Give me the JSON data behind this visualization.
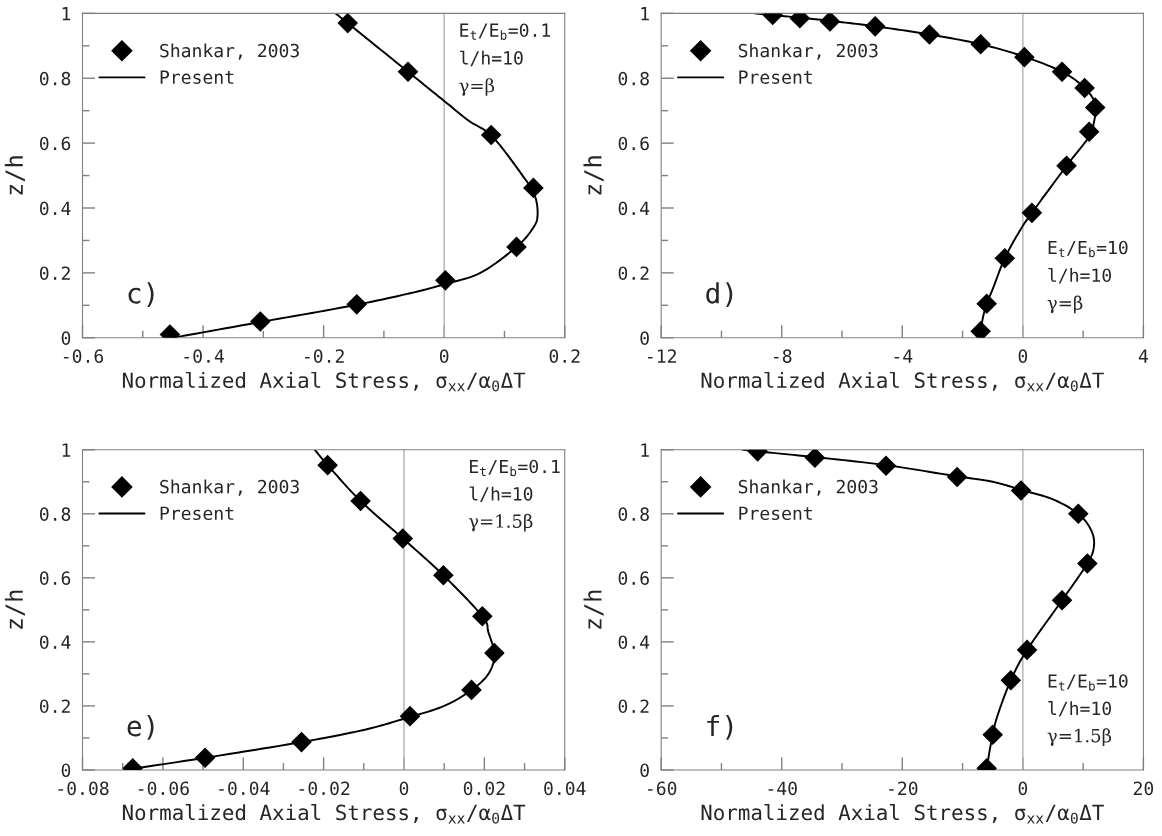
{
  "chart_data": [
    {
      "type": "line",
      "xlabel": "Normalized Axial Stress, σ$_{xx}$/α$_{0}$ΔT",
      "ylabel": "z/h",
      "legend": "top left",
      "grid": false,
      "xlim": [
        -0.6,
        0.2
      ],
      "xticks": [
        -0.6,
        {
          "value": -0.5,
          "label": null
        },
        -0.4,
        {
          "value": -0.3,
          "label": null
        },
        -0.2,
        {
          "value": -0.1,
          "label": null
        },
        0,
        {
          "value": 0.1,
          "label": null
        },
        0.2
      ],
      "ylim": [
        0,
        1
      ],
      "yticks": [
        0,
        {
          "value": 0.1,
          "label": null
        },
        0.2,
        {
          "value": 0.3,
          "label": null
        },
        0.4,
        {
          "value": 0.5,
          "label": null
        },
        0.6,
        {
          "value": 0.7,
          "label": null
        },
        0.8,
        {
          "value": 0.9,
          "label": null
        },
        1
      ],
      "ref_lines": [
        {
          "axis": "x",
          "value": 0,
          "color": "#b0b0b0"
        }
      ],
      "annotations": [
        "c)",
        "E$_{t}$/E$_{b}$=0.1",
        "l/h=10",
        "γ=β"
      ],
      "series": [
        {
          "name": "Shankar, 2003",
          "type": "scatter",
          "marker": "diamond",
          "color": "#000000",
          "x": [
            -0.455,
            -0.305,
            -0.145,
            0.002,
            0.12,
            0.148,
            0.078,
            -0.06,
            -0.16
          ],
          "values": [
            0.01,
            0.05,
            0.103,
            0.177,
            0.28,
            0.462,
            0.625,
            0.82,
            0.97
          ]
        },
        {
          "name": "Present",
          "color": "#000000",
          "x": [
            -0.45,
            -0.3,
            -0.15,
            -0.05,
            0,
            0.06,
            0.12,
            0.148,
            0.155,
            0.15,
            0.13,
            0.08,
            0.04,
            0,
            -0.06,
            -0.12,
            -0.16,
            -0.18
          ],
          "values": [
            0,
            0.05,
            0.1,
            0.14,
            0.165,
            0.2,
            0.28,
            0.34,
            0.38,
            0.44,
            0.5,
            0.62,
            0.67,
            0.73,
            0.82,
            0.91,
            0.97,
            1.0
          ]
        }
      ]
    },
    {
      "type": "line",
      "xlabel": "Normalized Axial Stress, σ$_{xx}$/α$_{0}$ΔT",
      "ylabel": "z/h",
      "legend": "top left",
      "grid": false,
      "xlim": [
        -12,
        4
      ],
      "xticks": [
        -12,
        {
          "value": -10,
          "label": null
        },
        -8,
        {
          "value": -6,
          "label": null
        },
        -4,
        {
          "value": -2,
          "label": null
        },
        0,
        {
          "value": 2,
          "label": null
        },
        4
      ],
      "ylim": [
        0,
        1
      ],
      "yticks": [
        0,
        {
          "value": 0.1,
          "label": null
        },
        0.2,
        {
          "value": 0.3,
          "label": null
        },
        0.4,
        {
          "value": 0.5,
          "label": null
        },
        0.6,
        {
          "value": 0.7,
          "label": null
        },
        0.8,
        {
          "value": 0.9,
          "label": null
        },
        1
      ],
      "ref_lines": [
        {
          "axis": "x",
          "value": 0,
          "color": "#b0b0b0"
        }
      ],
      "annotations": [
        "d)",
        "E$_{t}$/E$_{b}$=10",
        "l/h=10",
        "γ=β"
      ],
      "series": [
        {
          "name": "Shankar, 2003",
          "type": "scatter",
          "marker": "diamond",
          "color": "#000000",
          "x": [
            -8.3,
            -7.4,
            -6.4,
            -4.9,
            -3.1,
            -1.4,
            0.05,
            1.3,
            2.05,
            2.4,
            2.2,
            1.45,
            0.3,
            -0.6,
            -1.2,
            -1.4
          ],
          "values": [
            0.995,
            0.985,
            0.975,
            0.96,
            0.935,
            0.905,
            0.865,
            0.82,
            0.77,
            0.71,
            0.635,
            0.53,
            0.385,
            0.245,
            0.105,
            0.02
          ]
        },
        {
          "name": "Present",
          "color": "#000000",
          "x": [
            -8.9,
            -8.3,
            -6.4,
            -4.9,
            -3.1,
            -1.4,
            0,
            1.3,
            2.05,
            2.4,
            2.35,
            2.2,
            1.45,
            0.3,
            -0.1,
            -0.6,
            -1.0,
            -1.2,
            -1.35,
            -1.4
          ],
          "values": [
            1.0,
            0.995,
            0.977,
            0.96,
            0.935,
            0.905,
            0.868,
            0.82,
            0.77,
            0.72,
            0.66,
            0.62,
            0.53,
            0.385,
            0.33,
            0.245,
            0.15,
            0.105,
            0.05,
            0.0
          ]
        }
      ]
    },
    {
      "type": "line",
      "xlabel": "Normalized Axial Stress, σ$_{xx}$/α$_{0}$ΔT",
      "ylabel": "z/h",
      "legend": "top left",
      "grid": false,
      "xlim": [
        -0.08,
        0.04
      ],
      "xticks": [
        -0.08,
        {
          "value": -0.07,
          "label": null
        },
        -0.06,
        {
          "value": -0.05,
          "label": null
        },
        -0.04,
        {
          "value": -0.03,
          "label": null
        },
        -0.02,
        {
          "value": -0.01,
          "label": null
        },
        0,
        {
          "value": 0.01,
          "label": null
        },
        0.02,
        {
          "value": 0.03,
          "label": null
        },
        0.04
      ],
      "ylim": [
        0,
        1
      ],
      "yticks": [
        0,
        {
          "value": 0.1,
          "label": null
        },
        0.2,
        {
          "value": 0.3,
          "label": null
        },
        0.4,
        {
          "value": 0.5,
          "label": null
        },
        0.6,
        {
          "value": 0.7,
          "label": null
        },
        0.8,
        {
          "value": 0.9,
          "label": null
        },
        1
      ],
      "ref_lines": [
        {
          "axis": "x",
          "value": 0,
          "color": "#b0b0b0"
        }
      ],
      "annotations": [
        "e)",
        "E$_{t}$/E$_{b}$=0.1",
        "l/h=10",
        "γ=1.5β"
      ],
      "series": [
        {
          "name": "Shankar, 2003",
          "type": "scatter",
          "marker": "diamond",
          "color": "#000000",
          "x": [
            -0.0675,
            -0.0495,
            -0.0255,
            0.0015,
            0.0168,
            0.0225,
            0.0195,
            0.0098,
            -0.0003,
            -0.0108,
            -0.019
          ],
          "values": [
            0.005,
            0.038,
            0.087,
            0.168,
            0.25,
            0.365,
            0.48,
            0.608,
            0.723,
            0.84,
            0.952
          ]
        },
        {
          "name": "Present",
          "color": "#000000",
          "x": [
            -0.0695,
            -0.0495,
            -0.0255,
            -0.01,
            0,
            0.01,
            0.0168,
            0.021,
            0.0225,
            0.021,
            0.0195,
            0.0098,
            0,
            -0.0108,
            -0.019,
            -0.0222
          ],
          "values": [
            0,
            0.038,
            0.087,
            0.125,
            0.16,
            0.2,
            0.25,
            0.3,
            0.36,
            0.43,
            0.48,
            0.608,
            0.72,
            0.84,
            0.952,
            1.0
          ]
        }
      ]
    },
    {
      "type": "line",
      "xlabel": "Normalized Axial Stress, σ$_{xx}$/α$_{0}$ΔT",
      "ylabel": "z/h",
      "legend": "top left",
      "grid": false,
      "xlim": [
        -60,
        20
      ],
      "xticks": [
        -60,
        {
          "value": -50,
          "label": null
        },
        -40,
        {
          "value": -30,
          "label": null
        },
        -20,
        {
          "value": -10,
          "label": null
        },
        0,
        {
          "value": 10,
          "label": null
        },
        20
      ],
      "ylim": [
        0,
        1
      ],
      "yticks": [
        0,
        {
          "value": 0.1,
          "label": null
        },
        0.2,
        {
          "value": 0.3,
          "label": null
        },
        0.4,
        {
          "value": 0.5,
          "label": null
        },
        0.6,
        {
          "value": 0.7,
          "label": null
        },
        0.8,
        {
          "value": 0.9,
          "label": null
        },
        1
      ],
      "ref_lines": [
        {
          "axis": "x",
          "value": 0,
          "color": "#b0b0b0"
        }
      ],
      "annotations": [
        "f)",
        "E$_{t}$/E$_{b}$=10",
        "l/h=10",
        "γ=1.5β"
      ],
      "series": [
        {
          "name": "Shankar, 2003",
          "type": "scatter",
          "marker": "diamond",
          "color": "#000000",
          "x": [
            -44,
            -34.5,
            -22.7,
            -10.9,
            -0.3,
            9.2,
            10.7,
            6.5,
            0.7,
            -2,
            -5,
            -6
          ],
          "values": [
            0.995,
            0.975,
            0.95,
            0.915,
            0.873,
            0.8,
            0.645,
            0.53,
            0.375,
            0.28,
            0.11,
            0.005
          ]
        },
        {
          "name": "Present",
          "color": "#000000",
          "x": [
            -46.5,
            -44,
            -34.5,
            -22.7,
            -10.9,
            -5,
            -0.3,
            5,
            9.2,
            11.3,
            11.8,
            10.7,
            6.5,
            0.7,
            -2,
            -4.2,
            -5,
            -5.6,
            -6
          ],
          "values": [
            1.0,
            0.995,
            0.977,
            0.952,
            0.917,
            0.9,
            0.875,
            0.845,
            0.8,
            0.75,
            0.7,
            0.645,
            0.53,
            0.375,
            0.28,
            0.17,
            0.11,
            0.05,
            0.0
          ]
        }
      ]
    }
  ]
}
